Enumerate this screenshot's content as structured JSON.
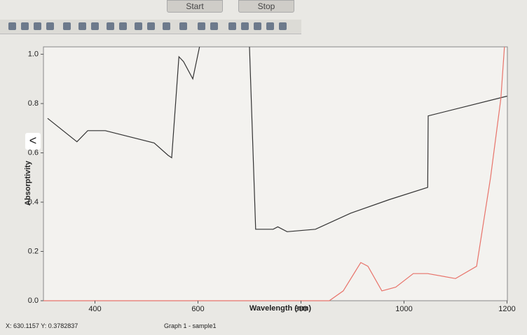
{
  "header": {
    "start": "Start",
    "stop": "Stop"
  },
  "chart_data": {
    "type": "line",
    "x_label": "Wavelength (nm)",
    "y_label": "Absorptivity",
    "xlim": [
      300,
      1200
    ],
    "xticks": [
      400,
      600,
      800,
      1000,
      1200
    ],
    "ylim": [
      0,
      1.03
    ],
    "yticks": [
      {
        "value": 0,
        "label": "0.0"
      },
      0.2,
      0.4,
      0.6,
      0.8,
      {
        "value": 1,
        "label": "1.0"
      }
    ],
    "series": [
      {
        "color": "#333333",
        "x": [
          308,
          365,
          386,
          420,
          515,
          542,
          549,
          563,
          572,
          590,
          603,
          650,
          700,
          712,
          746,
          755,
          773,
          828,
          896,
          971,
          1046,
          1047,
          1200
        ],
        "values": [
          0.74,
          0.645,
          0.69,
          0.69,
          0.64,
          0.59,
          0.58,
          0.99,
          0.97,
          0.9,
          1.03,
          null,
          1.03,
          0.29,
          0.29,
          0.3,
          0.28,
          0.29,
          0.355,
          0.41,
          0.46,
          0.75,
          0.83
        ]
      },
      {
        "color": "#e8736a",
        "x": [
          300,
          360,
          855,
          882,
          916,
          930,
          957,
          984,
          1018,
          1046,
          1100,
          1141,
          1168,
          1188,
          1195
        ],
        "values": [
          0.0,
          0.0,
          0.0,
          0.04,
          0.155,
          0.14,
          0.04,
          0.055,
          0.11,
          0.11,
          0.09,
          0.14,
          0.5,
          0.82,
          1.03
        ]
      }
    ]
  },
  "status": {
    "coords": "X: 630.1157  Y: 0.3782837",
    "graph": "Graph 1 - sample1"
  }
}
